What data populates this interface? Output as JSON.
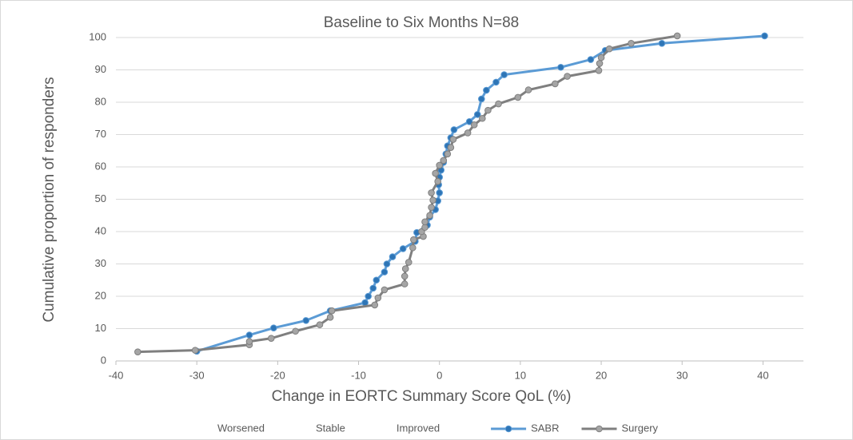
{
  "chart_data": {
    "type": "line",
    "title": "Baseline to Six Months N=88",
    "x_label": "Change in EORTC Summary Score QoL (%)",
    "y_label": "Cumulative proportion of responders",
    "xlim": [
      -40,
      45
    ],
    "ylim": [
      0,
      100
    ],
    "xticks": [
      -40,
      -30,
      -20,
      -10,
      0,
      10,
      20,
      30,
      40
    ],
    "yticks": [
      0,
      10,
      20,
      30,
      40,
      50,
      60,
      70,
      80,
      90,
      100
    ],
    "grid": true,
    "legend": "bottom",
    "series": [
      {
        "name": "Worsened",
        "x": [],
        "values": []
      },
      {
        "name": "Stable",
        "x": [],
        "values": []
      },
      {
        "name": "Improved",
        "x": [],
        "values": []
      },
      {
        "name": "SABR",
        "color": "#5b9bd5",
        "marker_color": "#2e75b6",
        "x": [
          -30,
          -23.5,
          -20.5,
          -16.5,
          -13.5,
          -9.2,
          -8.8,
          -8.2,
          -7.8,
          -6.8,
          -6.5,
          -5.8,
          -4.5,
          -3,
          -2.8,
          -1.5,
          -1.2,
          -0.5,
          -0.2,
          0,
          -0.1,
          0,
          0.2,
          0.5,
          0.8,
          1,
          1.4,
          1.8,
          3.7,
          4.7,
          5.2,
          5.8,
          7,
          8,
          15,
          18.7,
          20.5,
          27.5,
          40.2
        ],
        "values": [
          3,
          8,
          10.2,
          12.5,
          15.5,
          18,
          20,
          22.5,
          25,
          27.5,
          30,
          32.2,
          34.7,
          37,
          39.7,
          42,
          44.5,
          46.8,
          49.5,
          52,
          54.5,
          56.8,
          59,
          61.4,
          64,
          66.5,
          69,
          71.5,
          74,
          76.2,
          81,
          83.7,
          86.2,
          88.5,
          90.8,
          93.2,
          96,
          98.2,
          100.5
        ]
      },
      {
        "name": "Surgery",
        "color": "#7f7f7f",
        "marker_color": "#a5a5a5",
        "x": [
          -37.3,
          -30.2,
          -23.5,
          -23.5,
          -20.8,
          -17.8,
          -14.8,
          -13.5,
          -13.3,
          -8,
          -7.6,
          -6.8,
          -4.3,
          -4.3,
          -4.2,
          -3.8,
          -3.3,
          -3.2,
          -2,
          -2.2,
          -1.8,
          -1.8,
          -1.2,
          -1,
          -0.8,
          -1,
          -0.2,
          -0.5,
          0,
          0.5,
          1,
          1.4,
          1.7,
          3.5,
          4.3,
          5.3,
          6,
          7.3,
          9.7,
          11,
          14.3,
          15.8,
          19.7,
          19.8,
          20,
          21,
          23.7,
          29.4
        ],
        "values": [
          2.8,
          3.3,
          5,
          6,
          7,
          9.2,
          11.2,
          13.5,
          15.5,
          17.3,
          19.5,
          22,
          23.8,
          26.2,
          28.5,
          30.5,
          35,
          37.5,
          38.5,
          40,
          41.3,
          43,
          45,
          47.5,
          49.7,
          52,
          55.5,
          58,
          60.5,
          62,
          64,
          66,
          68.5,
          70.5,
          73,
          75,
          77.5,
          79.5,
          81.5,
          83.8,
          85.7,
          88,
          89.8,
          92,
          93.8,
          96.5,
          98.2,
          100.5
        ]
      }
    ]
  }
}
